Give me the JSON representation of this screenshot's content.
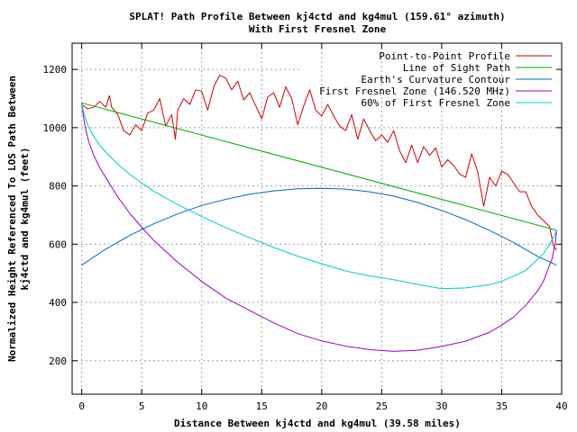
{
  "chart_data": {
    "type": "line",
    "title": "SPLAT! Path Profile Between kj4ctd and kg4mul (159.61° azimuth)",
    "subtitle": "With First Fresnel Zone",
    "xlabel": "Distance Between kj4ctd and kg4mul (39.58 miles)",
    "ylabel_lines": [
      "Normalized Height Referenced To LOS Path Between",
      "kj4ctd and kg4mul (feet)"
    ],
    "xlim": [
      -0.8,
      40
    ],
    "ylim": [
      85,
      1290
    ],
    "xticks": [
      0,
      5,
      10,
      15,
      20,
      25,
      30,
      35,
      40
    ],
    "yticks": [
      200,
      400,
      600,
      800,
      1000,
      1200
    ],
    "grid": true,
    "legend_position": "top-right",
    "series": [
      {
        "name": "Point-to-Point Profile",
        "color": "#cc0000",
        "x": [
          0,
          0.5,
          1,
          1.5,
          2,
          2.3,
          2.5,
          3,
          3.5,
          4,
          4.5,
          5,
          5.5,
          6,
          6.5,
          7,
          7.5,
          7.8,
          8,
          8.5,
          9,
          9.5,
          10,
          10.5,
          11,
          11.5,
          12,
          12.5,
          13,
          13.5,
          14,
          14.5,
          15,
          15.5,
          16,
          16.5,
          17,
          17.5,
          18,
          18.5,
          19,
          19.5,
          20,
          20.5,
          21,
          21.5,
          22,
          22.5,
          23,
          23.5,
          24,
          24.5,
          25,
          25.5,
          26,
          26.5,
          27,
          27.5,
          28,
          28.5,
          29,
          29.5,
          30,
          30.5,
          31,
          31.5,
          32,
          32.5,
          33,
          33.5,
          34,
          34.5,
          35,
          35.5,
          36,
          36.5,
          37,
          37.5,
          38,
          38.5,
          39,
          39.3,
          39.58
        ],
        "values": [
          1080,
          1065,
          1070,
          1090,
          1070,
          1110,
          1070,
          1045,
          990,
          975,
          1010,
          990,
          1050,
          1060,
          1100,
          1005,
          1045,
          960,
          1060,
          1100,
          1080,
          1130,
          1125,
          1060,
          1140,
          1180,
          1170,
          1130,
          1160,
          1095,
          1120,
          1075,
          1030,
          1105,
          1120,
          1070,
          1140,
          1100,
          1010,
          1075,
          1130,
          1060,
          1040,
          1080,
          1040,
          1005,
          990,
          1045,
          960,
          1030,
          990,
          955,
          975,
          950,
          990,
          920,
          880,
          940,
          880,
          935,
          905,
          930,
          865,
          890,
          870,
          840,
          830,
          910,
          850,
          730,
          830,
          800,
          850,
          840,
          810,
          780,
          780,
          730,
          700,
          680,
          660,
          595,
          580
        ]
      },
      {
        "name": "Line of Sight Path",
        "color": "#00aa00",
        "x": [
          0,
          39.58
        ],
        "values": [
          1085,
          648
        ]
      },
      {
        "name": "Earth's Curvature Contour",
        "color": "#0066cc",
        "x": [
          0,
          2,
          4,
          6,
          8,
          10,
          12,
          14,
          16,
          18,
          19.79,
          22,
          24,
          26,
          28,
          30,
          32,
          34,
          36,
          38,
          39.58
        ],
        "values": [
          528,
          583,
          630,
          670,
          704,
          733,
          754,
          772,
          783,
          790,
          792,
          789,
          780,
          765,
          743,
          716,
          684,
          647,
          606,
          558,
          528
        ]
      },
      {
        "name": "First Fresnel Zone (146.520 MHz)",
        "color": "#9900cc",
        "x": [
          0,
          0.1,
          0.3,
          0.6,
          1,
          1.5,
          2,
          3,
          4,
          5,
          6,
          8,
          10,
          12,
          14,
          16,
          18,
          20,
          22,
          24,
          26,
          27,
          28,
          30,
          32,
          34,
          35,
          36,
          37,
          38,
          38.5,
          39,
          39.2,
          39.4,
          39.5,
          39.58
        ],
        "values": [
          1085,
          1050,
          1000,
          950,
          905,
          862,
          829,
          762,
          706,
          658,
          613,
          538,
          472,
          415,
          372,
          330,
          293,
          268,
          250,
          238,
          232,
          234,
          236,
          249,
          267,
          298,
          322,
          350,
          390,
          440,
          474,
          530,
          550,
          590,
          610,
          648
        ]
      },
      {
        "name": "60% of First Fresnel Zone",
        "color": "#00cccc",
        "x": [
          0,
          0.1,
          0.3,
          0.6,
          1,
          1.5,
          2,
          3,
          4,
          5,
          6,
          8,
          10,
          12,
          14,
          16,
          18,
          20,
          22,
          24,
          26,
          28,
          30,
          32,
          34,
          35,
          36,
          37,
          38,
          38.5,
          39,
          39.4,
          39.58
        ],
        "values": [
          1085,
          1063,
          1032,
          1000,
          970,
          940,
          916,
          875,
          840,
          810,
          782,
          736,
          695,
          657,
          622,
          589,
          559,
          533,
          508,
          491,
          478,
          462,
          447,
          450,
          461,
          473,
          490,
          510,
          548,
          568,
          600,
          630,
          648
        ]
      }
    ]
  }
}
